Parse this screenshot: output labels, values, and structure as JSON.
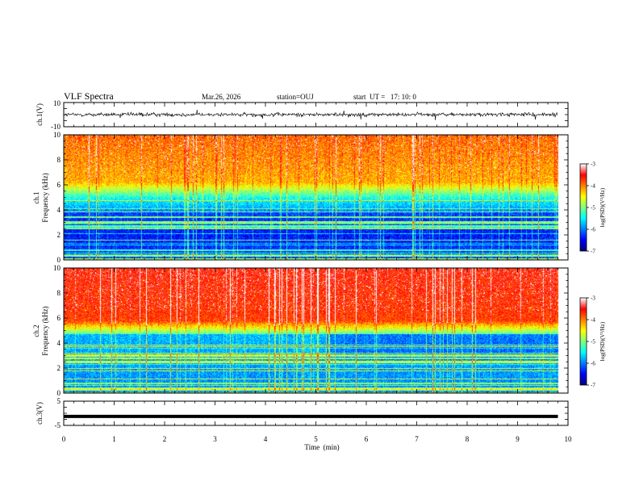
{
  "header": {
    "title": "VLF Spectra",
    "date": "Mar.26, 2026",
    "station": "station=OUJ",
    "start": "start  UT =   17: 10: 0"
  },
  "chart_data": [
    {
      "type": "line",
      "panel": "ch1-waveform",
      "ylabel": "ch.1(V)",
      "ylim": [
        -10,
        10
      ],
      "yticks": [
        "10",
        "-10"
      ],
      "xlim": [
        0,
        10
      ],
      "series_color": "#000000"
    },
    {
      "type": "heatmap",
      "panel": "ch1-spectrogram",
      "ylabel": "ch.1\nFrequency  (kHz)",
      "ylabel_lines": [
        "ch.1",
        "Frequency  (kHz)"
      ],
      "ylim": [
        0,
        10
      ],
      "yticks": [
        "0",
        "2",
        "4",
        "6",
        "8",
        "10"
      ],
      "xlim": [
        0,
        10
      ],
      "data_end_min": 9.8,
      "colorbar": {
        "label": "log(PSD)(V²/Hz)",
        "range": [
          -7,
          -3
        ],
        "ticks": [
          "-3",
          "-4",
          "-5",
          "-6",
          "-7"
        ]
      },
      "colormap": [
        "#00007f",
        "#0000ff",
        "#0080ff",
        "#00ffff",
        "#80ff80",
        "#ffff00",
        "#ff8000",
        "#ff0000",
        "#ffffff"
      ]
    },
    {
      "type": "heatmap",
      "panel": "ch2-spectrogram",
      "ylabel": "ch.2\nFrequency  (kHz)",
      "ylabel_lines": [
        "ch.2",
        "Frequency  (kHz)"
      ],
      "ylim": [
        0,
        10
      ],
      "yticks": [
        "0",
        "2",
        "4",
        "6",
        "8",
        "10"
      ],
      "xlim": [
        0,
        10
      ],
      "data_end_min": 9.8,
      "colorbar": {
        "label": "log(PSD)(V²/Hz)",
        "range": [
          -7,
          -3
        ],
        "ticks": [
          "-3",
          "-4",
          "-5",
          "-6",
          "-7"
        ]
      }
    },
    {
      "type": "line",
      "panel": "ch3-waveform",
      "ylabel": "ch.3(V)",
      "ylim": [
        -5,
        5
      ],
      "yticks": [
        "5",
        "-5"
      ],
      "xlim": [
        0,
        10
      ],
      "constant_value": -1.3,
      "xlabel": "Time  (min)",
      "xticks": [
        "0",
        "1",
        "2",
        "3",
        "4",
        "5",
        "6",
        "7",
        "8",
        "9",
        "10"
      ]
    }
  ]
}
